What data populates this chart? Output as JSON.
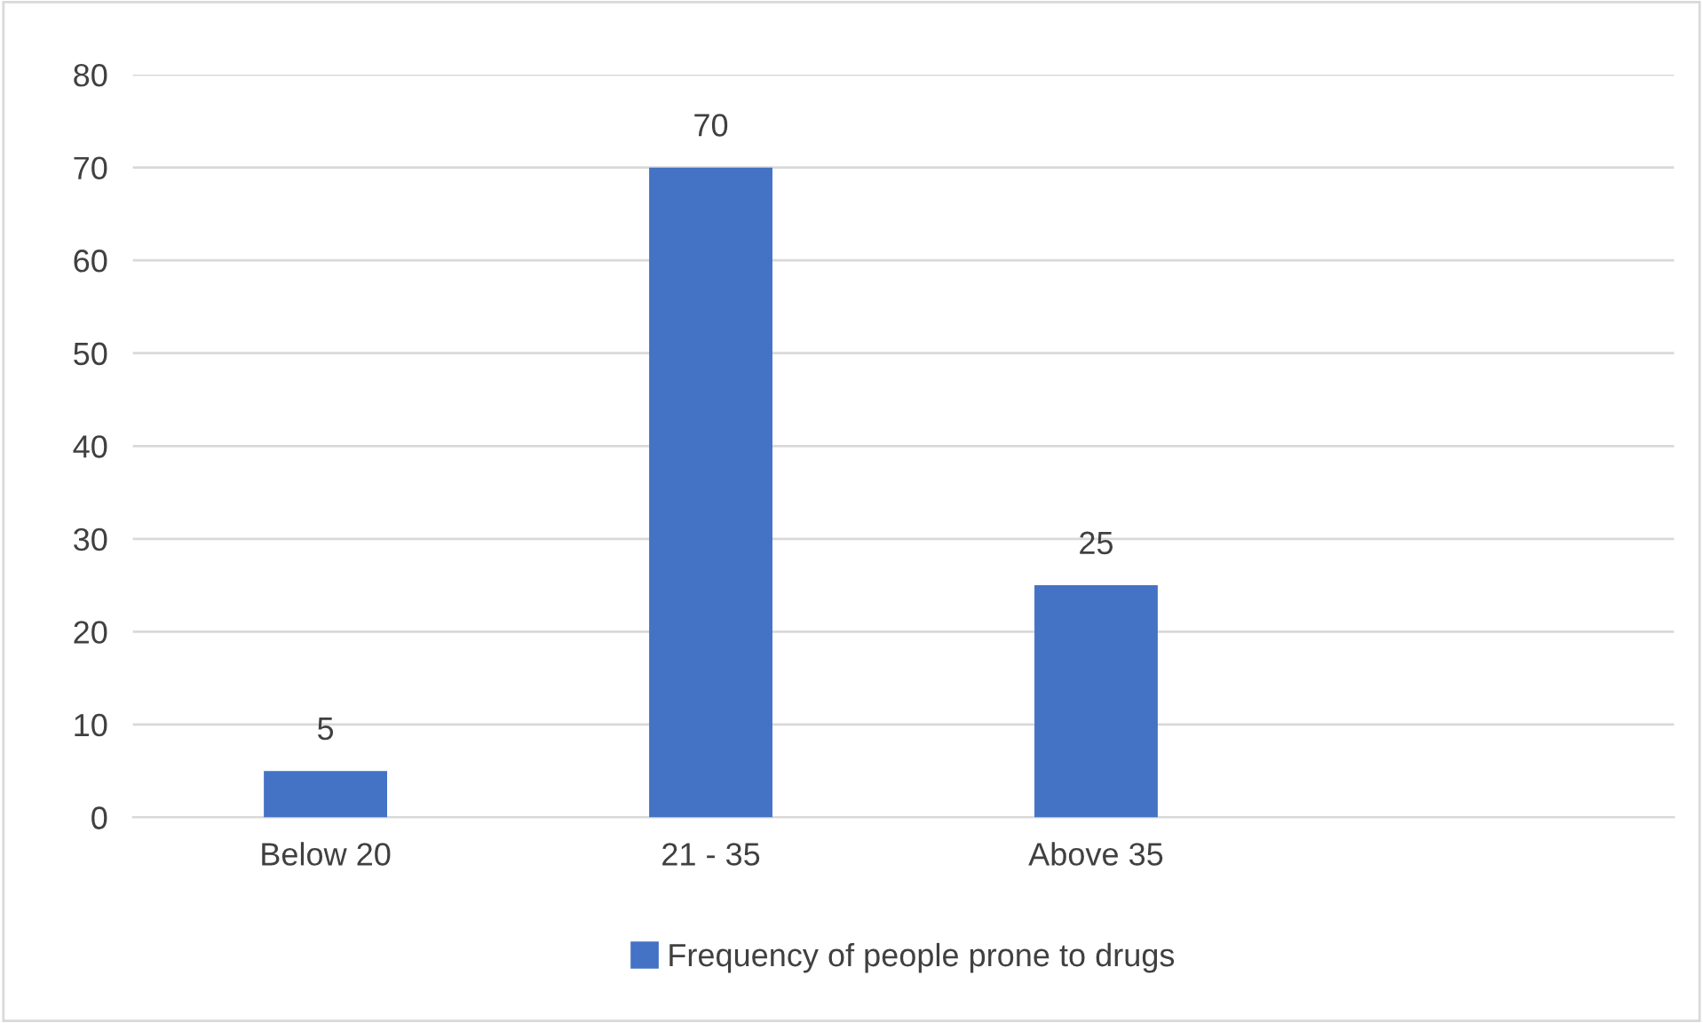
{
  "chart_data": {
    "type": "bar",
    "categories": [
      "Below 20",
      "21 - 35",
      "Above 35",
      null
    ],
    "series": [
      {
        "name": "Frequency of people prone to drugs",
        "color": "#4472c4",
        "values": [
          5,
          70,
          25,
          null
        ]
      }
    ],
    "ylim": [
      0,
      80
    ],
    "yticks": [
      0,
      10,
      20,
      30,
      40,
      50,
      60,
      70,
      80
    ],
    "grid": "y",
    "legend": "bottom",
    "data_labels": true
  }
}
